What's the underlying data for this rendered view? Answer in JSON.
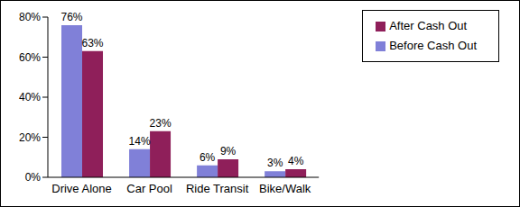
{
  "chart_data": {
    "type": "bar",
    "categories": [
      "Drive Alone",
      "Car Pool",
      "Ride Transit",
      "Bike/Walk"
    ],
    "series": [
      {
        "name": "Before Cash Out",
        "color": "#8080d8",
        "values": [
          76,
          14,
          6,
          3
        ],
        "value_labels": [
          "76%",
          "14%",
          "6%",
          "3%"
        ]
      },
      {
        "name": "After Cash Out",
        "color": "#8f1f5a",
        "values": [
          63,
          23,
          9,
          4
        ],
        "value_labels": [
          "63%",
          "23%",
          "9%",
          "4%"
        ]
      }
    ],
    "ylim": [
      0,
      80
    ],
    "yticks": [
      {
        "value": 0,
        "label": "0%"
      },
      {
        "value": 20,
        "label": "20%"
      },
      {
        "value": 40,
        "label": "40%"
      },
      {
        "value": 60,
        "label": "60%"
      },
      {
        "value": 80,
        "label": "80%"
      }
    ],
    "grid": false,
    "legend": "top-right",
    "data_labels": true
  }
}
